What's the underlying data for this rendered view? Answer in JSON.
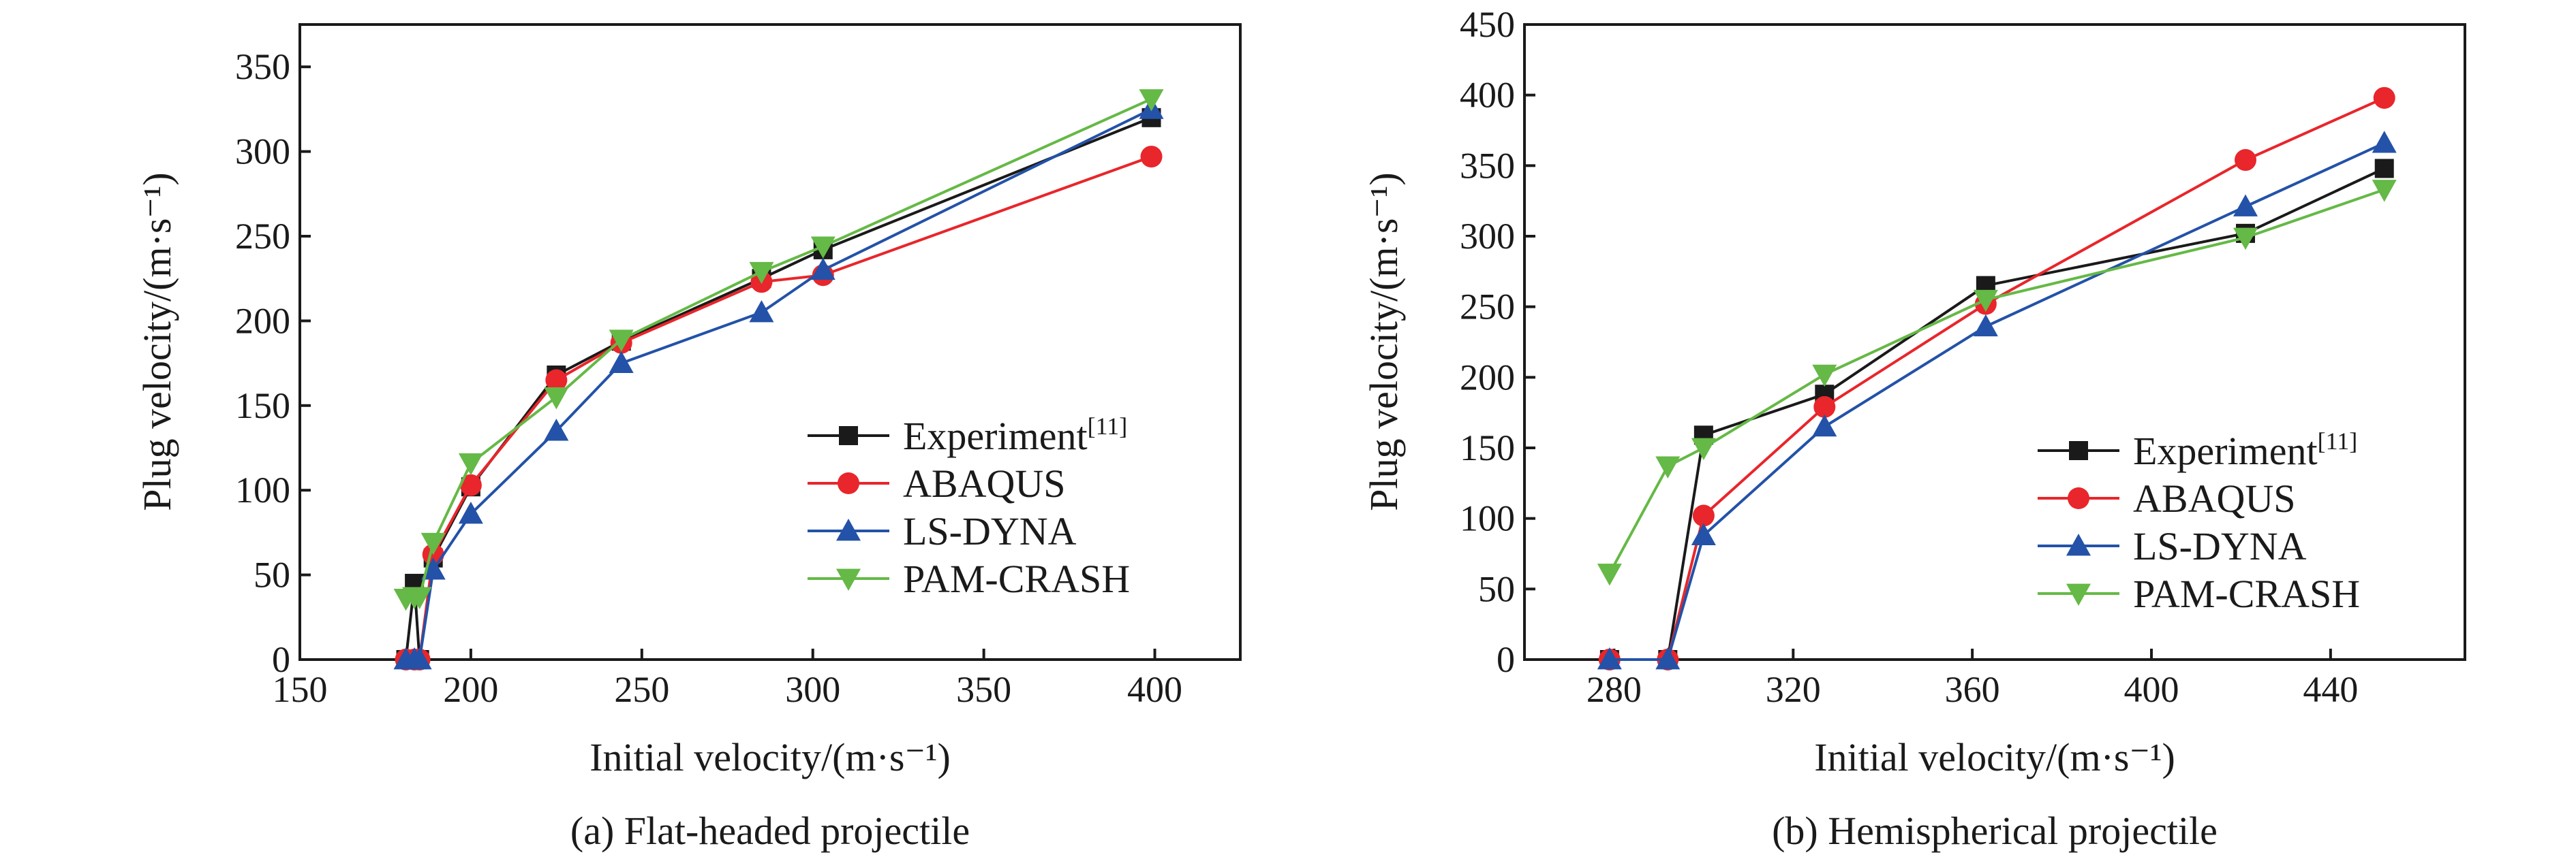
{
  "figure": {
    "panels": [
      {
        "caption": "(a) Flat-headed projectile",
        "xlabel": "Initial velocity/(m·s⁻¹)",
        "ylabel": "Plug velocity/(m·s⁻¹)",
        "legend": [
          {
            "label": "Experiment",
            "sup": "[11]"
          },
          {
            "label": "ABAQUS",
            "sup": ""
          },
          {
            "label": "LS-DYNA",
            "sup": ""
          },
          {
            "label": "PAM-CRASH",
            "sup": ""
          }
        ]
      },
      {
        "caption": "(b) Hemispherical projectile",
        "xlabel": "Initial velocity/(m·s⁻¹)",
        "ylabel": "Plug velocity/(m·s⁻¹)",
        "legend": [
          {
            "label": "Experiment",
            "sup": "[11]"
          },
          {
            "label": "ABAQUS",
            "sup": ""
          },
          {
            "label": "LS-DYNA",
            "sup": ""
          },
          {
            "label": "PAM-CRASH",
            "sup": ""
          }
        ]
      }
    ]
  },
  "chart_data": [
    {
      "type": "line",
      "title": "(a) Flat-headed projectile",
      "xlabel": "Initial velocity/(m·s⁻¹)",
      "ylabel": "Plug velocity/(m·s⁻¹)",
      "xlim": [
        150,
        425
      ],
      "ylim": [
        0,
        375
      ],
      "xticks": [
        150,
        200,
        250,
        300,
        350,
        400
      ],
      "yticks": [
        0,
        50,
        100,
        150,
        200,
        250,
        300,
        350
      ],
      "legend_position": "bottom-right",
      "grid": false,
      "series": [
        {
          "name": "Experiment[11]",
          "color": "#1a1a1a",
          "marker": "square",
          "x": [
            181,
            183.5,
            185,
            189,
            200,
            225,
            244,
            285,
            303,
            399
          ],
          "y": [
            0,
            45,
            0,
            60,
            102,
            168,
            188,
            225,
            242,
            320
          ]
        },
        {
          "name": "ABAQUS",
          "color": "#e8262b",
          "marker": "circle",
          "x": [
            181,
            183.5,
            185,
            189,
            200,
            225,
            244,
            285,
            303,
            399
          ],
          "y": [
            0,
            0,
            0,
            62,
            103,
            165,
            187,
            223,
            227,
            297
          ]
        },
        {
          "name": "LS-DYNA",
          "color": "#2352a8",
          "marker": "triangle-up",
          "x": [
            181,
            183.5,
            185,
            189,
            200,
            225,
            244,
            285,
            303,
            399
          ],
          "y": [
            0,
            0,
            0,
            53,
            86,
            135,
            175,
            205,
            230,
            325
          ]
        },
        {
          "name": "PAM-CRASH",
          "color": "#65b946",
          "marker": "triangle-down",
          "x": [
            181,
            183.5,
            185,
            189,
            200,
            225,
            244,
            285,
            303,
            399
          ],
          "y": [
            36,
            37,
            37,
            69,
            116,
            155,
            189,
            229,
            244,
            331
          ]
        }
      ]
    },
    {
      "type": "line",
      "title": "(b) Hemispherical projectile",
      "xlabel": "Initial velocity/(m·s⁻¹)",
      "ylabel": "Plug velocity/(m·s⁻¹)",
      "xlim": [
        260,
        470
      ],
      "ylim": [
        0,
        450
      ],
      "xticks": [
        280,
        320,
        360,
        400,
        440
      ],
      "yticks": [
        0,
        50,
        100,
        150,
        200,
        250,
        300,
        350,
        400,
        450
      ],
      "legend_position": "bottom-right",
      "grid": false,
      "series": [
        {
          "name": "Experiment[11]",
          "color": "#1a1a1a",
          "marker": "square",
          "x": [
            279,
            292,
            300,
            327,
            363,
            421,
            452
          ],
          "y": [
            0,
            0,
            159,
            188,
            265,
            302,
            348
          ]
        },
        {
          "name": "ABAQUS",
          "color": "#e8262b",
          "marker": "circle",
          "x": [
            279,
            292,
            300,
            327,
            363,
            421,
            452
          ],
          "y": [
            0,
            0,
            102,
            179,
            252,
            354,
            398
          ]
        },
        {
          "name": "LS-DYNA",
          "color": "#2352a8",
          "marker": "triangle-up",
          "x": [
            279,
            292,
            300,
            327,
            363,
            421,
            452
          ],
          "y": [
            0,
            0,
            88,
            165,
            236,
            321,
            366
          ]
        },
        {
          "name": "PAM-CRASH",
          "color": "#65b946",
          "marker": "triangle-down",
          "x": [
            279,
            292,
            300,
            327,
            363,
            421,
            452
          ],
          "y": [
            61,
            137,
            150,
            202,
            255,
            299,
            333
          ]
        }
      ]
    }
  ]
}
